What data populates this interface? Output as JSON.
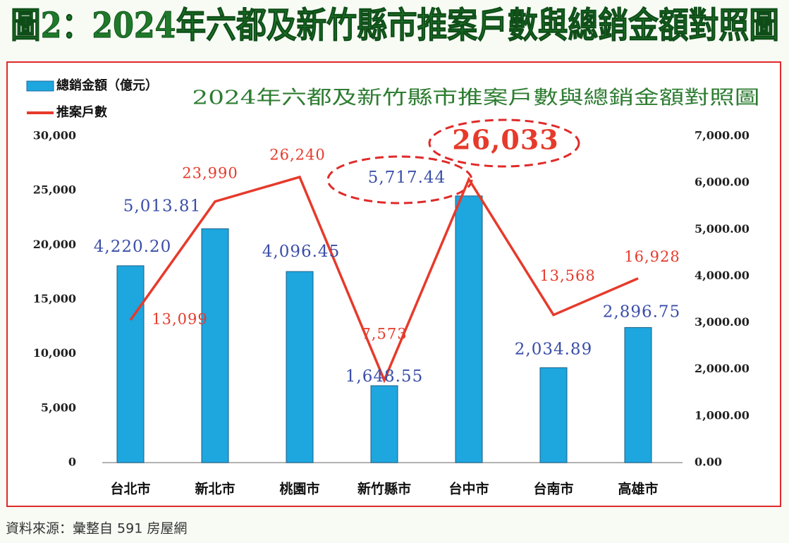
{
  "header": {
    "title": "圖2：2024年六都及新竹縣市推案戶數與總銷金額對照圖"
  },
  "chart_data": {
    "type": "bar",
    "title": "2024年六都及新竹縣市推案戶數與總銷金額對照圖",
    "categories": [
      "台北市",
      "新北市",
      "桃園市",
      "新竹縣市",
      "台中市",
      "台南市",
      "高雄市"
    ],
    "series": [
      {
        "name": "總銷金額（億元）",
        "type": "bar",
        "axis": "y2",
        "color": "#1ea6df",
        "values": [
          4220.2,
          5013.81,
          4096.45,
          1648.55,
          5717.44,
          2034.89,
          2896.75
        ],
        "value_labels": [
          "4,220.20",
          "5,013.81",
          "4,096.45",
          "1,648.55",
          "5,717.44",
          "2,034.89",
          "2,896.75"
        ]
      },
      {
        "name": "推案戶數",
        "type": "line",
        "color": "#e63a2b",
        "values": [
          13099,
          23990,
          26240,
          7573,
          26033,
          13568,
          16928
        ],
        "value_labels": [
          "13,099",
          "23,990",
          "26,240",
          "7,573",
          "26,033",
          "13,568",
          "16,928"
        ]
      }
    ],
    "ylim": [
      0,
      30000
    ],
    "yticks": [
      0,
      {
        "value": 5000,
        "label": "5,000"
      },
      {
        "value": 10000,
        "label": "10,000"
      },
      {
        "value": 15000,
        "label": "15,000"
      },
      {
        "value": 20000,
        "label": "20,000"
      },
      {
        "value": 25000,
        "label": "25,000"
      },
      {
        "value": 30000,
        "label": "30,000"
      }
    ],
    "y2lim": [
      0,
      7000
    ],
    "y2ticks": [
      {
        "value": 0,
        "label": "0.00"
      },
      {
        "value": 1000,
        "label": "1,000.00"
      },
      {
        "value": 2000,
        "label": "2,000.00"
      },
      {
        "value": 3000,
        "label": "3,000.00"
      },
      {
        "value": 4000,
        "label": "4,000.00"
      },
      {
        "value": 5000,
        "label": "5,000.00"
      },
      {
        "value": 6000,
        "label": "6,000.00"
      },
      {
        "value": 7000,
        "label": "7,000.00"
      }
    ]
  },
  "footer": {
    "source": "資料來源：彙整自 591 房屋網"
  }
}
